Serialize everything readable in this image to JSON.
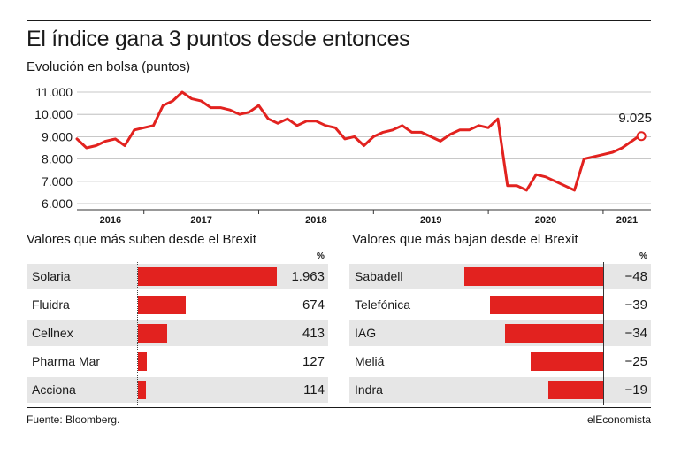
{
  "title": "El índice gana 3 puntos desde entonces",
  "subtitle": "Evolución en bolsa (puntos)",
  "source": "Fuente: Bloomberg.",
  "brand": "elEconomista",
  "colors": {
    "accent": "#e2221f",
    "text": "#1a1a1a",
    "shade": "#e6e6e6"
  },
  "chart_data": [
    {
      "type": "line",
      "title": "El índice gana 3 puntos desde entonces",
      "subtitle": "Evolución en bolsa (puntos)",
      "xlabel": "",
      "ylabel": "",
      "x_ticks": [
        "2016",
        "2017",
        "2018",
        "2019",
        "2020",
        "2021"
      ],
      "y_ticks": [
        "6.000",
        "7.000",
        "8.000",
        "9.000",
        "10.000",
        "11.000"
      ],
      "ylim": [
        6000,
        11000
      ],
      "xlim": [
        "2016-06",
        "2021-06"
      ],
      "grid": "horizontal",
      "end_label": "9.025",
      "end_value": 9025,
      "series": [
        {
          "x": [
            "2016-06",
            "2016-07",
            "2016-08",
            "2016-09",
            "2016-10",
            "2016-11",
            "2016-12",
            "2017-01",
            "2017-02",
            "2017-03",
            "2017-04",
            "2017-05",
            "2017-06",
            "2017-07",
            "2017-08",
            "2017-09",
            "2017-10",
            "2017-11",
            "2017-12",
            "2018-01",
            "2018-02",
            "2018-03",
            "2018-04",
            "2018-05",
            "2018-06",
            "2018-07",
            "2018-08",
            "2018-09",
            "2018-10",
            "2018-11",
            "2018-12",
            "2019-01",
            "2019-02",
            "2019-03",
            "2019-04",
            "2019-05",
            "2019-06",
            "2019-07",
            "2019-08",
            "2019-09",
            "2019-10",
            "2019-11",
            "2019-12",
            "2020-01",
            "2020-02",
            "2020-03",
            "2020-04",
            "2020-05",
            "2020-06",
            "2020-07",
            "2020-08",
            "2020-09",
            "2020-10",
            "2020-11",
            "2020-12",
            "2021-01",
            "2021-02",
            "2021-03",
            "2021-04",
            "2021-05"
          ],
          "values": [
            8900,
            8500,
            8600,
            8800,
            8900,
            8600,
            9300,
            9400,
            9500,
            10400,
            10600,
            11000,
            10700,
            10600,
            10300,
            10300,
            10200,
            10000,
            10100,
            10400,
            9800,
            9600,
            9800,
            9500,
            9700,
            9700,
            9500,
            9400,
            8900,
            9000,
            8600,
            9000,
            9200,
            9300,
            9500,
            9200,
            9200,
            9000,
            8800,
            9100,
            9300,
            9300,
            9500,
            9400,
            9800,
            6800,
            6800,
            6600,
            7300,
            7200,
            7000,
            6800,
            6600,
            8000,
            8100,
            8200,
            8300,
            8500,
            8800,
            9100
          ]
        }
      ]
    },
    {
      "type": "bar",
      "title": "Valores que más suben desde el Brexit",
      "unit": "%",
      "categories": [
        "Solaria",
        "Fluidra",
        "Cellnex",
        "Pharma Mar",
        "Acciona"
      ],
      "value_labels": [
        "1.963",
        "674",
        "413",
        "127",
        "114"
      ],
      "values": [
        1963,
        674,
        413,
        127,
        114
      ]
    },
    {
      "type": "bar",
      "title": "Valores que más bajan desde el Brexit",
      "unit": "%",
      "categories": [
        "Sabadell",
        "Telefónica",
        "IAG",
        "Meliá",
        "Indra"
      ],
      "value_labels": [
        "−48",
        "−39",
        "−34",
        "−25",
        "−19"
      ],
      "values": [
        -48,
        -39,
        -34,
        -25,
        -19
      ]
    }
  ]
}
